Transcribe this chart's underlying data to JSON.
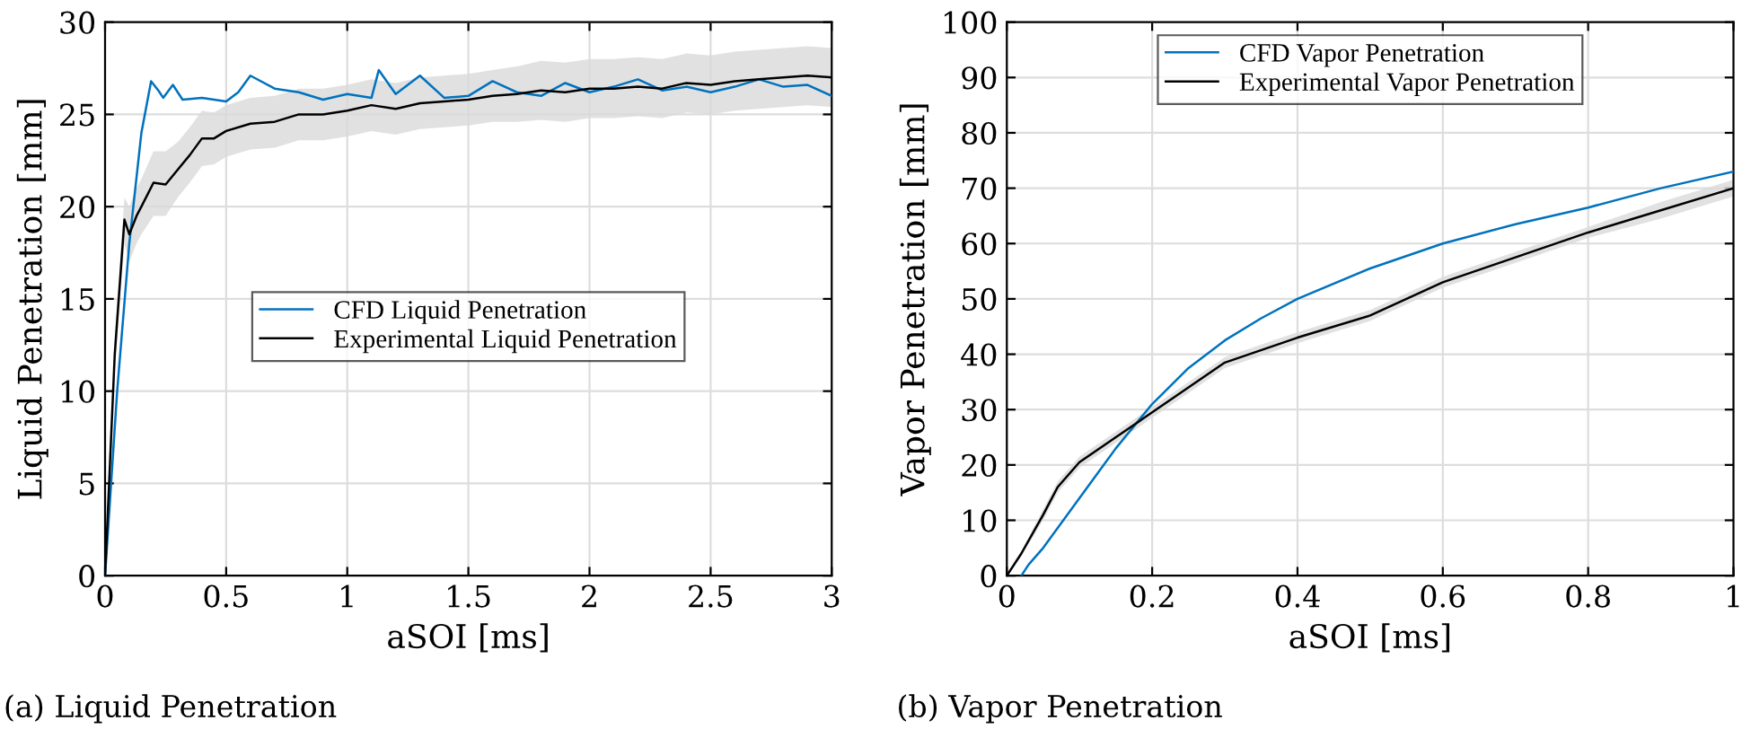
{
  "chart_data": [
    {
      "type": "line",
      "xlabel": "aSOI [ms]",
      "ylabel": "Liquid Penetration [mm]",
      "xlim": [
        0,
        3
      ],
      "ylim": [
        0,
        30
      ],
      "xticks": [
        0,
        0.5,
        1,
        1.5,
        2,
        2.5,
        3
      ],
      "yticks": [
        0,
        5,
        10,
        15,
        20,
        25,
        30
      ],
      "grid": true,
      "legend": "center",
      "line_style": "solid",
      "annotations": [
        "(a) Liquid Penetration"
      ],
      "series": [
        {
          "name": "CFD Liquid Penetration",
          "color": "#0072bd",
          "x": [
            0,
            0.05,
            0.1,
            0.15,
            0.19,
            0.22,
            0.24,
            0.28,
            0.32,
            0.4,
            0.5,
            0.55,
            0.6,
            0.7,
            0.8,
            0.9,
            1.0,
            1.1,
            1.13,
            1.2,
            1.3,
            1.4,
            1.5,
            1.6,
            1.7,
            1.8,
            1.9,
            2.0,
            2.1,
            2.2,
            2.3,
            2.4,
            2.5,
            2.6,
            2.7,
            2.8,
            2.9,
            3.0
          ],
          "values": [
            0,
            10,
            18,
            24,
            26.8,
            26.3,
            25.9,
            26.6,
            25.8,
            25.9,
            25.7,
            26.2,
            27.1,
            26.4,
            26.2,
            25.8,
            26.1,
            25.9,
            27.4,
            26.1,
            27.1,
            25.9,
            26.0,
            26.8,
            26.2,
            26.0,
            26.7,
            26.2,
            26.5,
            26.9,
            26.3,
            26.5,
            26.2,
            26.5,
            26.9,
            26.5,
            26.6,
            26.0
          ]
        },
        {
          "name": "Experimental Liquid Penetration",
          "color": "#000000",
          "x": [
            0,
            0.04,
            0.08,
            0.1,
            0.13,
            0.15,
            0.2,
            0.25,
            0.3,
            0.35,
            0.4,
            0.45,
            0.5,
            0.6,
            0.7,
            0.8,
            0.9,
            1.0,
            1.1,
            1.2,
            1.3,
            1.4,
            1.5,
            1.6,
            1.7,
            1.8,
            1.9,
            2.0,
            2.1,
            2.2,
            2.3,
            2.4,
            2.5,
            2.6,
            2.7,
            2.8,
            2.9,
            3.0
          ],
          "values": [
            0,
            12,
            19.3,
            18.5,
            19.5,
            20,
            21.3,
            21.2,
            22.0,
            22.8,
            23.7,
            23.7,
            24.1,
            24.5,
            24.6,
            25.0,
            25.0,
            25.2,
            25.5,
            25.3,
            25.6,
            25.7,
            25.8,
            26.0,
            26.1,
            26.3,
            26.2,
            26.4,
            26.4,
            26.5,
            26.4,
            26.7,
            26.6,
            26.8,
            26.9,
            27.0,
            27.1,
            27.0
          ],
          "lower": [
            0,
            11,
            18,
            17,
            18,
            18.5,
            19.5,
            19.5,
            20.5,
            21.3,
            22.2,
            22.3,
            22.7,
            23.1,
            23.2,
            23.6,
            23.6,
            23.8,
            24.1,
            23.9,
            24.2,
            24.3,
            24.4,
            24.6,
            24.6,
            24.7,
            24.6,
            24.8,
            24.8,
            24.9,
            24.8,
            25.1,
            25.0,
            25.2,
            25.3,
            25.4,
            25.5,
            25.4
          ],
          "upper": [
            0,
            13,
            20.5,
            20,
            21,
            21.5,
            23,
            23,
            23.5,
            24.3,
            25.2,
            25.1,
            25.5,
            25.9,
            26.0,
            26.4,
            26.4,
            26.6,
            26.9,
            26.7,
            27.0,
            27.1,
            27.2,
            27.4,
            27.6,
            27.9,
            27.8,
            28.0,
            28.0,
            28.1,
            28.0,
            28.3,
            28.2,
            28.4,
            28.5,
            28.6,
            28.7,
            28.6
          ]
        }
      ]
    },
    {
      "type": "line",
      "xlabel": "aSOI [ms]",
      "ylabel": "Vapor Penetration [mm]",
      "xlim": [
        0,
        1
      ],
      "ylim": [
        0,
        100
      ],
      "xticks": [
        0,
        0.2,
        0.4,
        0.6,
        0.8,
        1
      ],
      "yticks": [
        0,
        10,
        20,
        30,
        40,
        50,
        60,
        70,
        80,
        90,
        100
      ],
      "grid": true,
      "legend": "top",
      "line_style": "solid",
      "annotations": [
        "(b) Vapor Penetration"
      ],
      "series": [
        {
          "name": "CFD Vapor Penetration",
          "color": "#0072bd",
          "x": [
            0.02,
            0.03,
            0.05,
            0.1,
            0.15,
            0.2,
            0.25,
            0.3,
            0.35,
            0.4,
            0.5,
            0.6,
            0.7,
            0.8,
            0.9,
            1.0
          ],
          "values": [
            0,
            2,
            5,
            14,
            23,
            31,
            37.5,
            42.5,
            46.5,
            50,
            55.5,
            60,
            63.5,
            66.5,
            70,
            73
          ]
        },
        {
          "name": "Experimental Vapor Penetration",
          "color": "#000000",
          "x": [
            0,
            0.02,
            0.05,
            0.07,
            0.1,
            0.15,
            0.2,
            0.25,
            0.3,
            0.4,
            0.5,
            0.6,
            0.7,
            0.8,
            0.9,
            1.0
          ],
          "values": [
            0,
            4,
            11,
            16,
            20.5,
            25,
            29.5,
            34,
            38.5,
            43,
            47,
            53,
            57.5,
            62,
            66,
            70
          ],
          "lower": [
            0,
            3.5,
            10,
            15,
            19.5,
            24,
            28.5,
            33,
            37.5,
            42,
            46,
            52,
            56.5,
            61,
            64.5,
            68.5
          ],
          "upper": [
            0,
            4.5,
            12,
            17,
            21.5,
            26,
            30.5,
            35,
            39.5,
            44,
            48,
            54,
            58.5,
            63,
            67.5,
            71.5
          ]
        }
      ]
    }
  ]
}
